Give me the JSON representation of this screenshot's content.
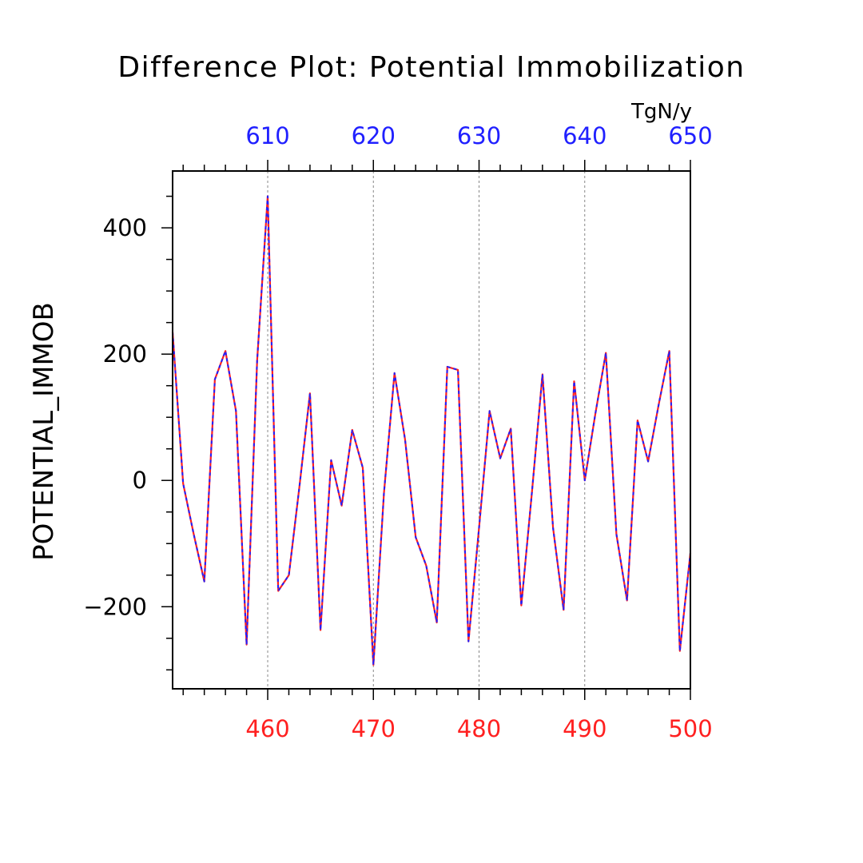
{
  "chart_data": {
    "type": "line",
    "title": "Difference Plot: Potential Immobilization",
    "ylabel": "POTENTIAL_IMMOB",
    "units": "TgN/y",
    "xlim": [
      451,
      500
    ],
    "ylim": [
      -330,
      490
    ],
    "x2lim": [
      601,
      650
    ],
    "grid": "vertical-dashed",
    "x_ticks": [
      460,
      470,
      480,
      490,
      500
    ],
    "x2_ticks": [
      610,
      620,
      630,
      640,
      650
    ],
    "y_ticks": [
      -200,
      0,
      200,
      400
    ],
    "y_tick_labels": [
      "−200",
      "0",
      "200",
      "400"
    ],
    "colors": {
      "bottom_axis": "#ff2020",
      "top_axis": "#2020ff",
      "series_a": "#ff2020",
      "series_b": "#2020ff",
      "frame": "#000000",
      "grid": "#888888"
    },
    "x": [
      451,
      452,
      453,
      454,
      455,
      456,
      457,
      458,
      459,
      460,
      461,
      462,
      463,
      464,
      465,
      466,
      467,
      468,
      469,
      470,
      471,
      472,
      473,
      474,
      475,
      476,
      477,
      478,
      479,
      480,
      481,
      482,
      483,
      484,
      485,
      486,
      487,
      488,
      489,
      490,
      491,
      492,
      493,
      494,
      495,
      496,
      497,
      498,
      499,
      500
    ],
    "values": [
      235,
      -5,
      -85,
      -160,
      160,
      205,
      110,
      -260,
      190,
      450,
      -175,
      -150,
      -10,
      138,
      -237,
      32,
      -40,
      80,
      20,
      -292,
      -20,
      170,
      65,
      -90,
      -135,
      -225,
      180,
      175,
      -255,
      -75,
      110,
      35,
      82,
      -198,
      -20,
      168,
      -75,
      -205,
      157,
      0,
      105,
      202,
      -85,
      -190,
      95,
      30,
      120,
      205,
      -270,
      -115
    ]
  }
}
